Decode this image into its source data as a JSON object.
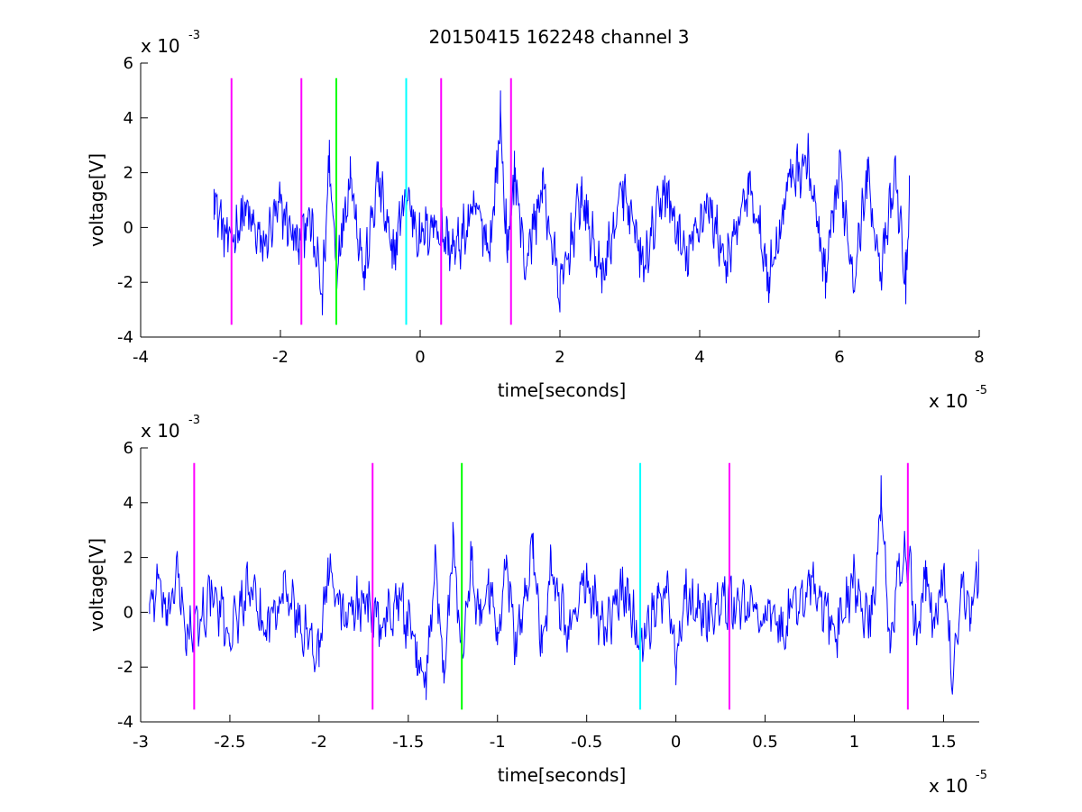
{
  "title": "20150415 162248 channel 3",
  "chart_data": [
    {
      "type": "line",
      "title": "20150415 162248 channel 3",
      "xlabel": "time[seconds]",
      "ylabel": "voltage[V]",
      "x_multiplier": "x 10",
      "x_multiplier_exp": "-5",
      "y_multiplier": "x 10",
      "y_multiplier_exp": "-3",
      "xlim": [
        -4,
        8
      ],
      "ylim": [
        -4,
        6
      ],
      "xticks": [
        -4,
        -2,
        0,
        2,
        4,
        6,
        8
      ],
      "xtick_labels": [
        "-4",
        "-2",
        "0",
        "2",
        "4",
        "6",
        "8"
      ],
      "yticks": [
        -4,
        -2,
        0,
        2,
        4,
        6
      ],
      "ytick_labels": [
        "-4",
        "-2",
        "0",
        "2",
        "4",
        "6"
      ],
      "grid": false,
      "series": [
        {
          "color": "#0000ff",
          "x_start": -2.95,
          "x_end": 7.0,
          "x": [
            -2.95,
            -2.75,
            -2.5,
            -2.25,
            -2.0,
            -1.75,
            -1.6,
            -1.4,
            -1.3,
            -1.2,
            -1.0,
            -0.8,
            -0.6,
            -0.4,
            -0.2,
            0.0,
            0.2,
            0.5,
            0.8,
            1.0,
            1.15,
            1.25,
            1.35,
            1.5,
            1.75,
            2.0,
            2.3,
            2.6,
            2.9,
            3.2,
            3.5,
            3.8,
            4.1,
            4.4,
            4.7,
            5.0,
            5.3,
            5.55,
            5.8,
            6.0,
            6.2,
            6.4,
            6.6,
            6.8,
            6.95,
            7.0
          ],
          "y": [
            1.4,
            -0.8,
            0.8,
            -1.0,
            1.0,
            -0.9,
            0.6,
            -3.2,
            3.2,
            -1.9,
            2.6,
            -2.3,
            2.4,
            -1.5,
            1.7,
            -0.6,
            0.3,
            -1.2,
            0.9,
            -1.0,
            5.0,
            -1.3,
            2.8,
            -1.9,
            2.0,
            -3.1,
            1.5,
            -2.4,
            1.7,
            -2.0,
            1.9,
            -1.6,
            1.2,
            -1.8,
            2.0,
            -2.4,
            2.5,
            3.2,
            -2.6,
            2.8,
            -2.4,
            2.5,
            -2.2,
            2.6,
            -2.8,
            1.9
          ]
        }
      ],
      "markers": [
        {
          "x": -2.7,
          "color": "#ff00ff"
        },
        {
          "x": -1.7,
          "color": "#ff00ff"
        },
        {
          "x": -1.2,
          "color": "#00ff00"
        },
        {
          "x": -0.2,
          "color": "#00ffff"
        },
        {
          "x": 0.3,
          "color": "#ff00ff"
        },
        {
          "x": 1.3,
          "color": "#ff00ff"
        }
      ],
      "marker_yrange": [
        -3.55,
        5.45
      ]
    },
    {
      "type": "line",
      "xlabel": "time[seconds]",
      "ylabel": "voltage[V]",
      "x_multiplier": "x 10",
      "x_multiplier_exp": "-5",
      "y_multiplier": "x 10",
      "y_multiplier_exp": "-3",
      "xlim": [
        -3.0,
        1.7
      ],
      "ylim": [
        -4,
        6
      ],
      "xticks": [
        -3,
        -2.5,
        -2,
        -1.5,
        -1,
        -0.5,
        0,
        0.5,
        1,
        1.5
      ],
      "xtick_labels": [
        "-3",
        "-2.5",
        "-2",
        "-1.5",
        "-1",
        "-0.5",
        "0",
        "0.5",
        "1",
        "1.5"
      ],
      "yticks": [
        -4,
        -2,
        0,
        2,
        4,
        6
      ],
      "ytick_labels": [
        "-4",
        "-2",
        "0",
        "2",
        "4",
        "6"
      ],
      "grid": false,
      "series": [
        {
          "color": "#0000ff",
          "x_start": -2.95,
          "x_end": 1.7,
          "x": [
            -2.95,
            -2.9,
            -2.85,
            -2.8,
            -2.75,
            -2.7,
            -2.6,
            -2.5,
            -2.4,
            -2.3,
            -2.2,
            -2.1,
            -2.0,
            -1.95,
            -1.85,
            -1.75,
            -1.65,
            -1.55,
            -1.45,
            -1.4,
            -1.35,
            -1.3,
            -1.25,
            -1.2,
            -1.15,
            -1.1,
            -1.05,
            -1.0,
            -0.95,
            -0.9,
            -0.85,
            -0.8,
            -0.75,
            -0.7,
            -0.6,
            -0.5,
            -0.4,
            -0.3,
            -0.2,
            -0.1,
            -0.05,
            0.0,
            0.05,
            0.15,
            0.3,
            0.45,
            0.6,
            0.75,
            0.9,
            1.0,
            1.05,
            1.1,
            1.15,
            1.2,
            1.25,
            1.3,
            1.35,
            1.4,
            1.45,
            1.5,
            1.55,
            1.6,
            1.65,
            1.7
          ],
          "y": [
            0.3,
            1.4,
            -0.5,
            2.0,
            -0.8,
            -1.0,
            0.9,
            -1.1,
            1.2,
            -0.9,
            1.4,
            -0.8,
            -2.0,
            2.0,
            -0.4,
            0.7,
            -0.6,
            0.8,
            -2.3,
            -3.2,
            2.4,
            -2.6,
            3.3,
            -1.8,
            2.6,
            -0.5,
            1.6,
            -1.2,
            2.1,
            -1.4,
            0.5,
            2.9,
            -1.5,
            2.2,
            -1.0,
            1.8,
            -1.2,
            1.3,
            -1.3,
            0.5,
            1.3,
            -2.1,
            1.0,
            -0.2,
            0.5,
            0.1,
            -0.8,
            1.4,
            -1.0,
            1.8,
            -0.6,
            -0.1,
            5.0,
            -1.5,
            2.0,
            2.8,
            -1.2,
            1.9,
            -0.6,
            1.6,
            -3.0,
            1.4,
            -0.2,
            2.3
          ]
        }
      ],
      "markers": [
        {
          "x": -2.7,
          "color": "#ff00ff"
        },
        {
          "x": -1.7,
          "color": "#ff00ff"
        },
        {
          "x": -1.2,
          "color": "#00ff00"
        },
        {
          "x": -0.2,
          "color": "#00ffff"
        },
        {
          "x": 0.3,
          "color": "#ff00ff"
        },
        {
          "x": 1.3,
          "color": "#ff00ff"
        }
      ],
      "marker_yrange": [
        -3.55,
        5.45
      ]
    }
  ]
}
